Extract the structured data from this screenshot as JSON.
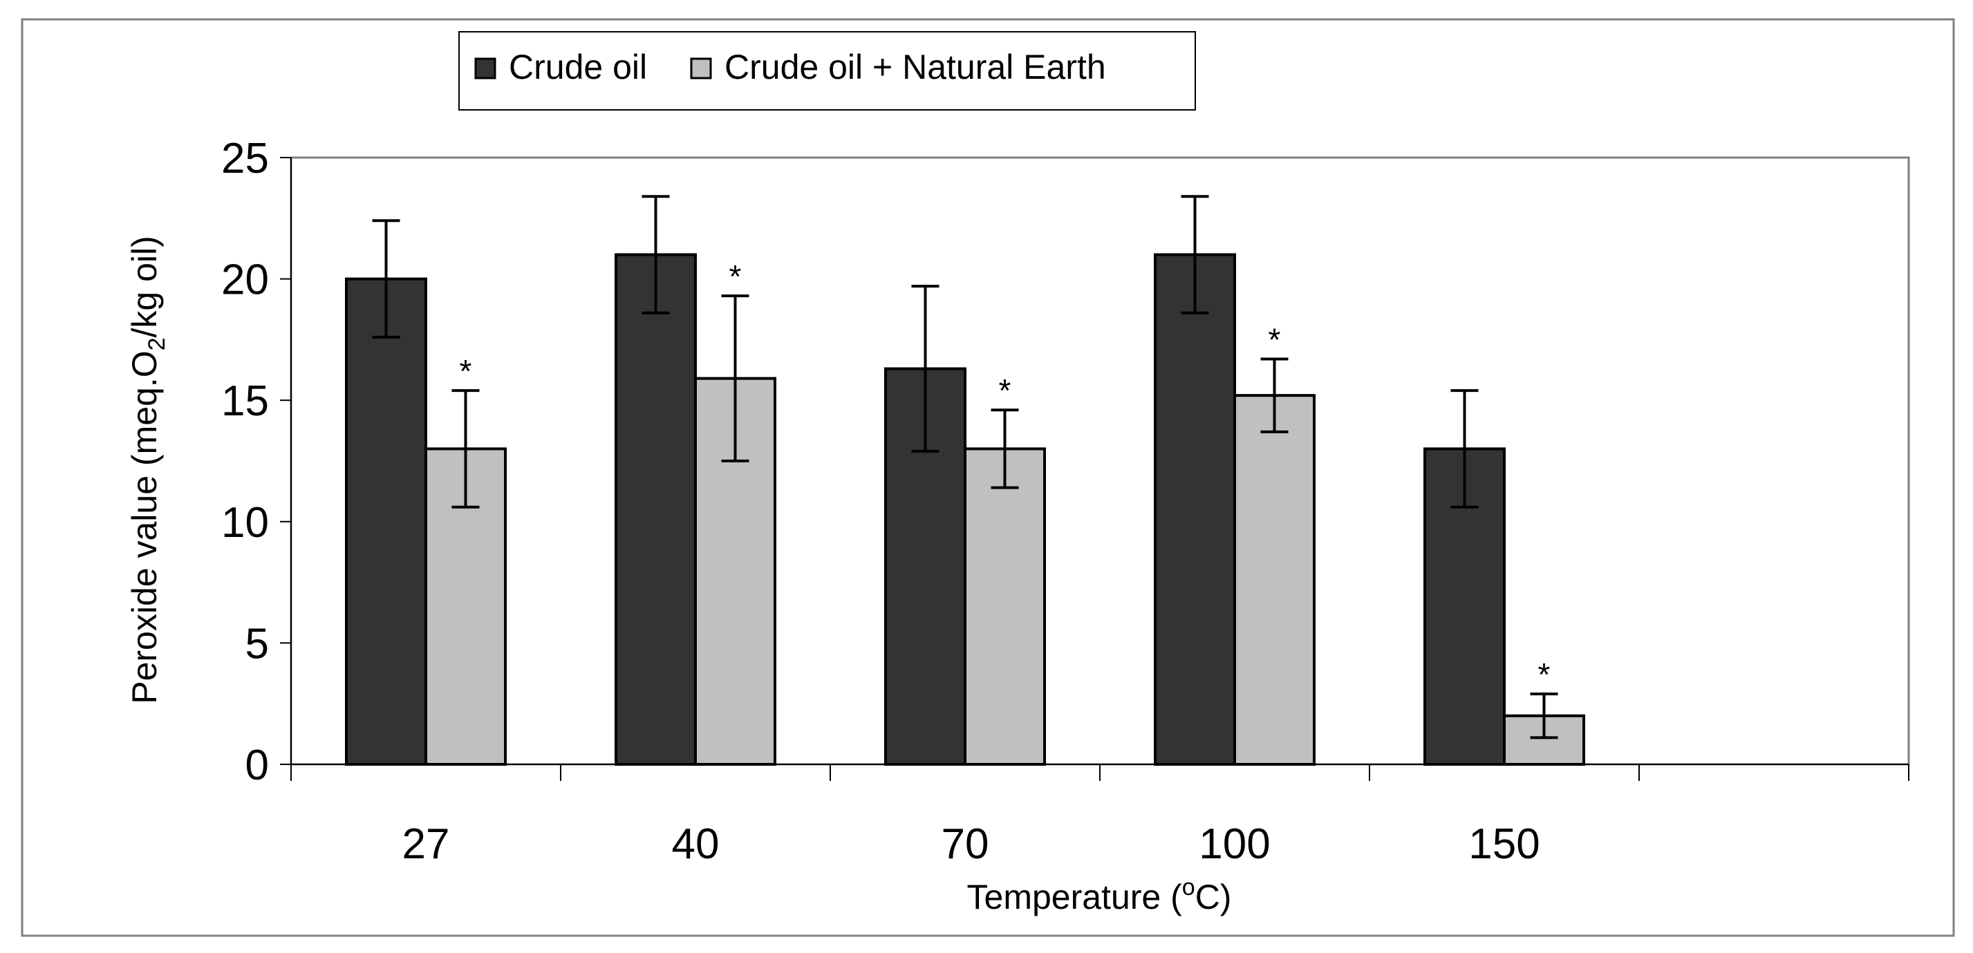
{
  "chart_data": {
    "type": "bar",
    "categories": [
      "27",
      "40",
      "70",
      "100",
      "150"
    ],
    "series": [
      {
        "name": "Crude oil",
        "color": "#333333",
        "values": [
          20.0,
          21.0,
          16.3,
          21.0,
          13.0
        ],
        "errors": [
          2.4,
          2.4,
          3.4,
          2.4,
          2.4
        ],
        "marks": [
          "",
          "",
          "",
          "",
          ""
        ]
      },
      {
        "name": "Crude oil + Natural Earth",
        "color": "#c0c0c0",
        "values": [
          13.0,
          15.9,
          13.0,
          15.2,
          2.0
        ],
        "errors": [
          2.4,
          3.4,
          1.6,
          1.5,
          0.9
        ],
        "marks": [
          "*",
          "*",
          "*",
          "*",
          "*"
        ]
      }
    ],
    "ylim": [
      0,
      25
    ],
    "yticks": [
      0,
      5,
      10,
      15,
      20,
      25
    ],
    "ytick_labels": [
      "0",
      "5",
      "10",
      "15",
      "20",
      "25"
    ],
    "num_slots": 6,
    "xlabel": "Temperature (°C)",
    "xlabel_parts": {
      "main": "Temperature (",
      "sup": "o",
      "end": "C)"
    },
    "ylabel": "Peroxide value (meq.O2/kg oil)",
    "ylabel_parts": {
      "main": "Peroxide value (meq.O",
      "sub": "2",
      "end": "/kg oil)"
    },
    "legend_position": "top-left",
    "grid": false
  }
}
